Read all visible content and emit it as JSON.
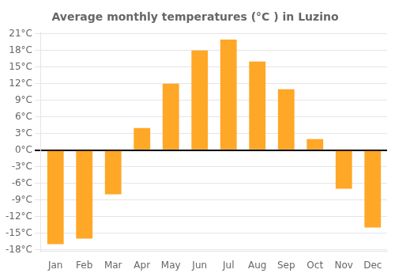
{
  "chart_data": {
    "type": "bar",
    "title": "Average monthly temperatures (°C ) in Luzino",
    "categories": [
      "Jan",
      "Feb",
      "Mar",
      "Apr",
      "May",
      "Jun",
      "Jul",
      "Aug",
      "Sep",
      "Oct",
      "Nov",
      "Dec"
    ],
    "values": [
      -17,
      -16,
      -8,
      4,
      12,
      18,
      20,
      16,
      11,
      2,
      -7,
      -14
    ],
    "color": "#FFA726",
    "ylim": [
      -18.3,
      21.3
    ],
    "yticks": [
      {
        "value": -18,
        "label": "-18°C"
      },
      {
        "value": -15,
        "label": "-15°C"
      },
      {
        "value": -12,
        "label": "-12°C"
      },
      {
        "value": -9,
        "label": "-9°C"
      },
      {
        "value": -6,
        "label": "-6°C"
      },
      {
        "value": -3,
        "label": "-3°C"
      },
      {
        "value": 0,
        "label": "0°C"
      },
      {
        "value": 3,
        "label": "3°C"
      },
      {
        "value": 6,
        "label": "6°C"
      },
      {
        "value": 9,
        "label": "9°C"
      },
      {
        "value": 12,
        "label": "12°C"
      },
      {
        "value": 15,
        "label": "15°C"
      },
      {
        "value": 18,
        "label": "18°C"
      },
      {
        "value": 21,
        "label": "21°C"
      }
    ],
    "grid": true
  }
}
